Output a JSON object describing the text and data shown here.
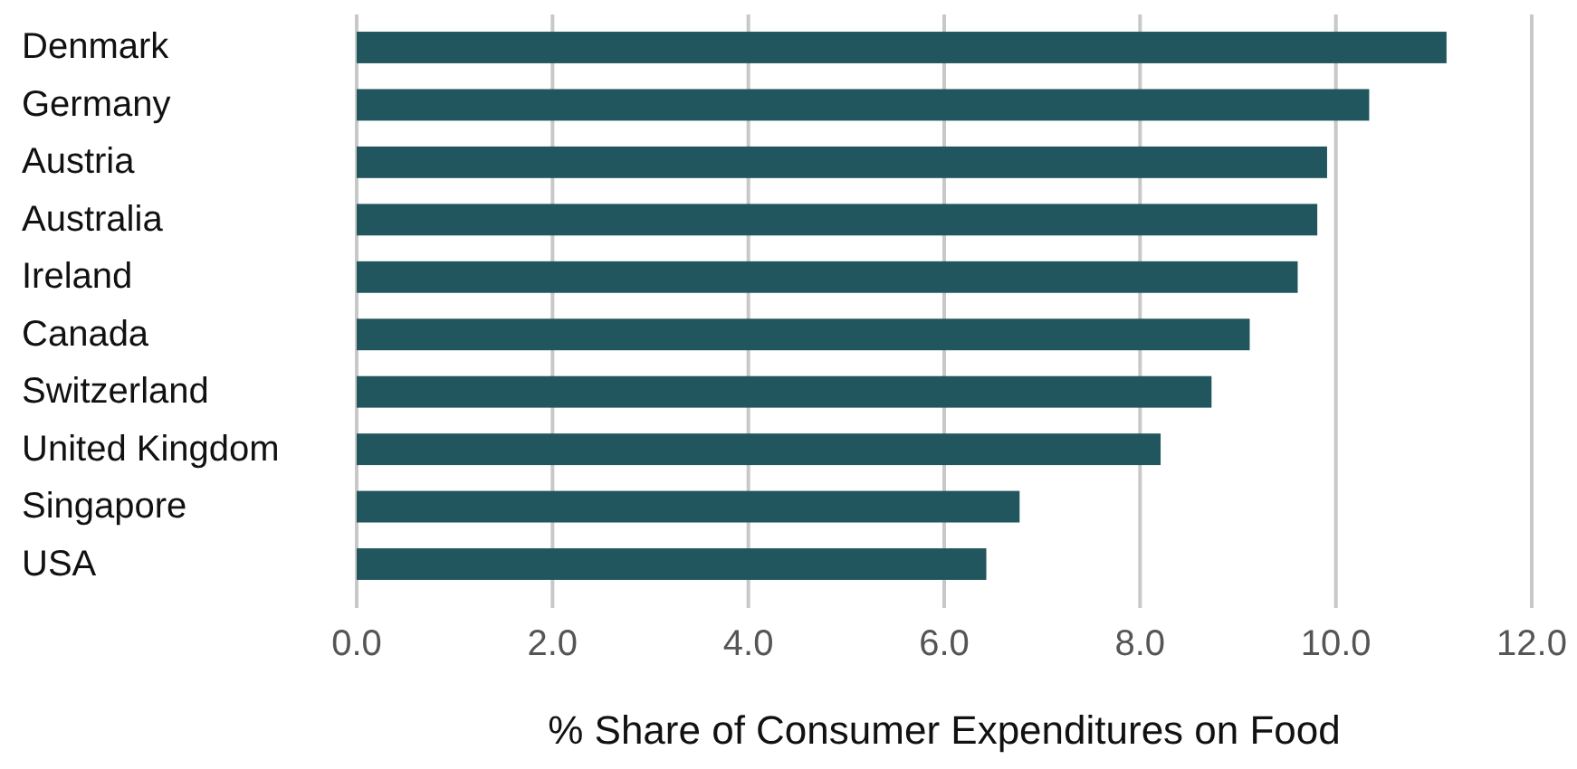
{
  "chart_data": {
    "type": "bar",
    "orientation": "horizontal",
    "xlabel": "% Share of Consumer Expenditures on Food",
    "categories": [
      "Denmark",
      "Germany",
      "Austria",
      "Australia",
      "Ireland",
      "Canada",
      "Switzerland",
      "United Kingdom",
      "Singapore",
      "USA"
    ],
    "values": [
      11.13,
      10.34,
      9.91,
      9.81,
      9.61,
      9.12,
      8.73,
      8.21,
      6.77,
      6.43
    ],
    "color": "#22565f",
    "xlim": [
      0,
      12
    ],
    "xticks": [
      {
        "value": 0,
        "label": "0.0"
      },
      {
        "value": 2,
        "label": "2.0"
      },
      {
        "value": 4,
        "label": "4.0"
      },
      {
        "value": 6,
        "label": "6.0"
      },
      {
        "value": 8,
        "label": "8.0"
      },
      {
        "value": 10,
        "label": "10.0"
      },
      {
        "value": 12,
        "label": "12.0"
      }
    ],
    "grid": "x"
  }
}
